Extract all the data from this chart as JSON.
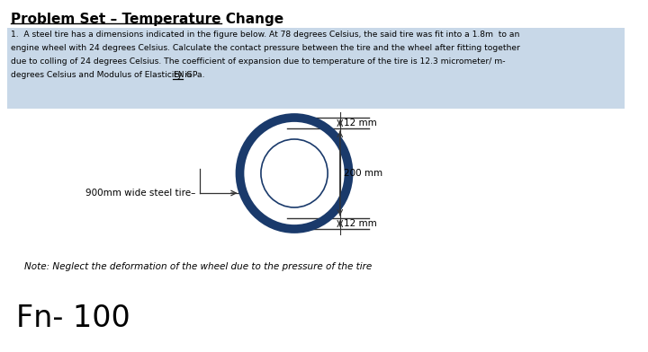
{
  "title": "Problem Set – Temperature Change",
  "problem_text_line1": "1.  A steel tire has a dimensions indicated in the figure below. At 78 degrees Celsius, the said tire was fit into a 1.8m  to an",
  "problem_text_line2": "engine wheel with 24 degrees Celsius. Calculate the contact pressure between the tire and the wheel after fitting together",
  "problem_text_line3": "due to colling of 24 degrees Celsius. The coefficient of expansion due to temperature of the tire is 12.3 micrometer/ m-",
  "problem_text_line4a": "degrees Celsius and Modulus of Elasticity is ",
  "problem_text_line4b": "EN",
  "problem_text_line4c": " GPa.",
  "note_text": "Note: Neglect the deformation of the wheel due to the pressure of the tire",
  "fn_text": "Fn- 100",
  "dim_top": "12 mm",
  "dim_mid": "200 mm",
  "dim_bot": "12 mm",
  "label_tire": "900mm wide steel tire–",
  "bg_highlight": "#c8d8e8",
  "circle_color": "#1a3a6b",
  "line_color": "#333333",
  "text_color": "#000000",
  "bg_color": "#ffffff"
}
